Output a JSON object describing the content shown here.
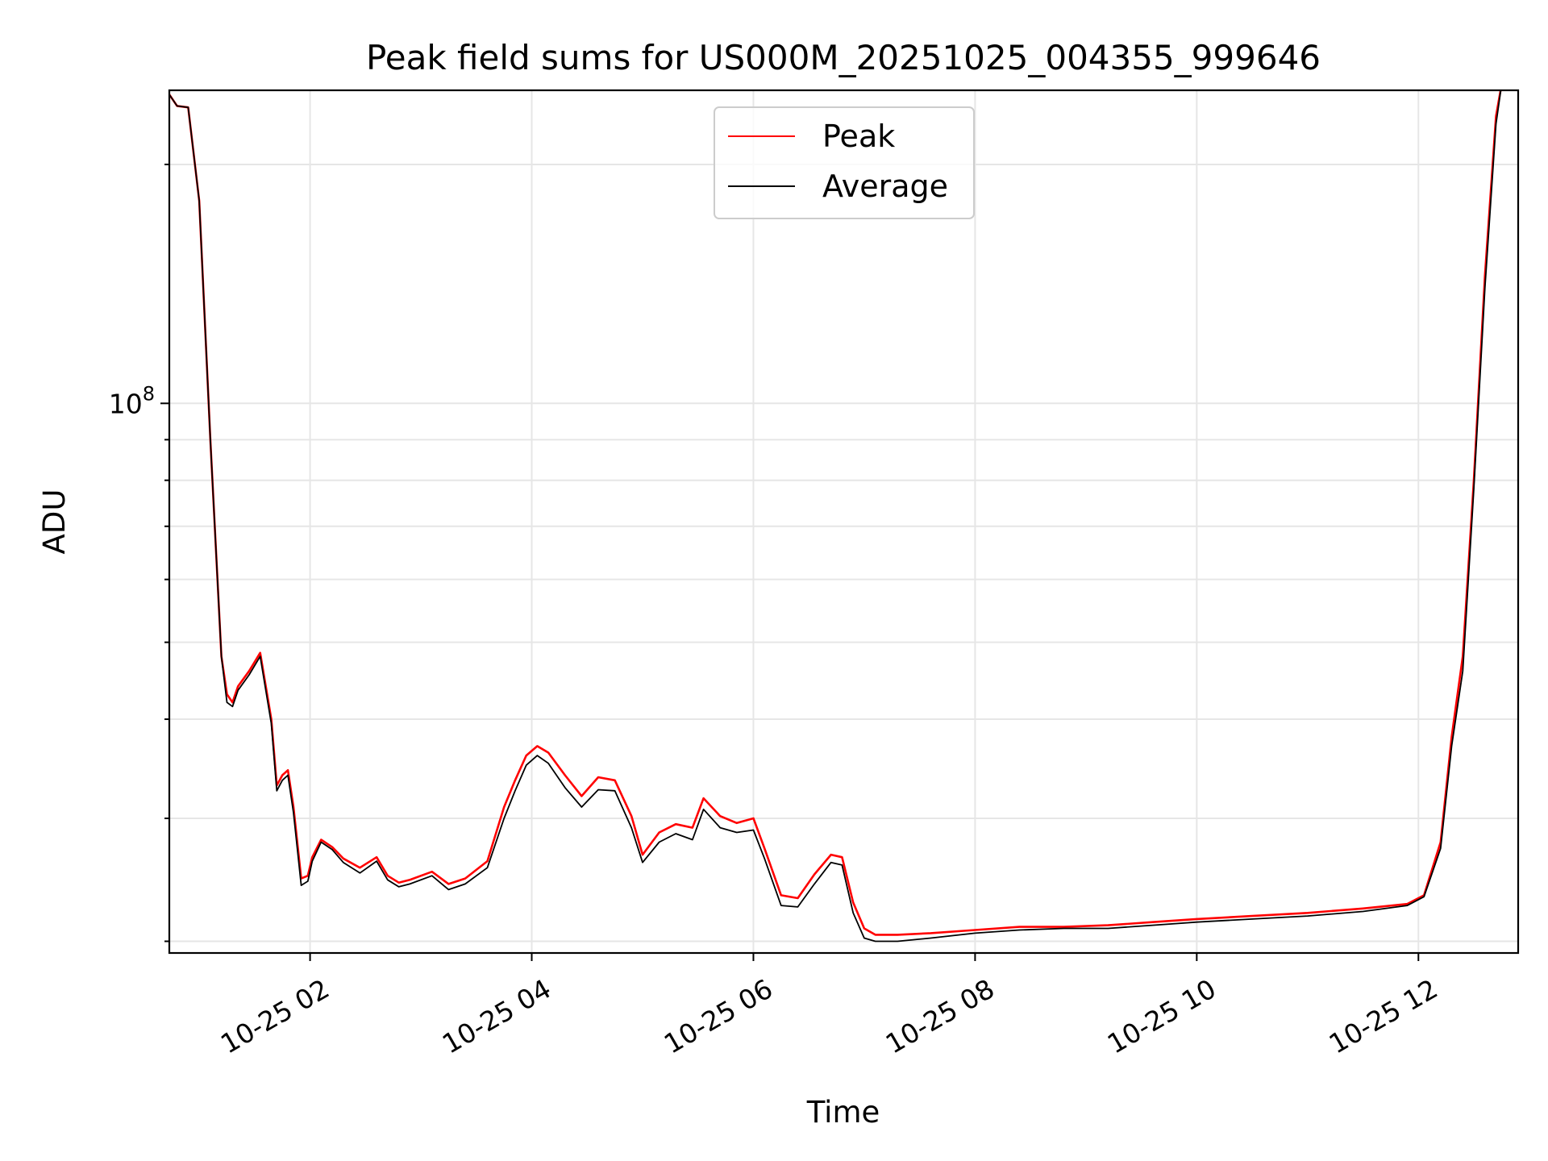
{
  "chart_data": {
    "type": "line",
    "title": "Peak field sums for US000M_20251025_004355_999646",
    "xlabel": "Time",
    "ylabel": "ADU",
    "yscale": "log",
    "grid": true,
    "legend_position": "top-center",
    "x_unit": "hours since 2025-10-25 00:00",
    "xlim": [
      0.73,
      12.9
    ],
    "ylim": [
      20300000,
      248000000
    ],
    "x_ticks": [
      {
        "value": 2,
        "label": "10-25 02"
      },
      {
        "value": 4,
        "label": "10-25 04"
      },
      {
        "value": 6,
        "label": "10-25 06"
      },
      {
        "value": 8,
        "label": "10-25 08"
      },
      {
        "value": 10,
        "label": "10-25 10"
      },
      {
        "value": 12,
        "label": "10-25 12"
      }
    ],
    "y_major_ticks": [
      {
        "value": 100000000,
        "base": "10",
        "exponent": "8"
      }
    ],
    "y_minor_ticks": [
      21000000,
      30000000,
      40000000,
      50000000,
      60000000,
      70000000,
      80000000,
      90000000,
      200000000
    ],
    "series": [
      {
        "name": "Peak",
        "color": "#ff0000",
        "x": [
          0.73,
          0.8,
          0.9,
          1.0,
          1.1,
          1.2,
          1.25,
          1.3,
          1.35,
          1.45,
          1.55,
          1.65,
          1.7,
          1.75,
          1.8,
          1.85,
          1.92,
          1.98,
          2.02,
          2.1,
          2.2,
          2.3,
          2.45,
          2.6,
          2.7,
          2.8,
          2.9,
          3.1,
          3.25,
          3.4,
          3.6,
          3.75,
          3.85,
          3.95,
          4.05,
          4.15,
          4.3,
          4.45,
          4.6,
          4.75,
          4.9,
          5.0,
          5.15,
          5.3,
          5.45,
          5.55,
          5.7,
          5.85,
          6.0,
          6.1,
          6.25,
          6.4,
          6.55,
          6.7,
          6.8,
          6.9,
          7.0,
          7.1,
          7.3,
          7.6,
          8.0,
          8.4,
          8.8,
          9.2,
          9.6,
          10.0,
          10.5,
          11.0,
          11.5,
          11.9,
          12.05,
          12.2,
          12.3,
          12.4,
          12.5,
          12.6,
          12.7,
          12.75
        ],
        "values": [
          245000000,
          237000000,
          236000000,
          180000000,
          90000000,
          48000000,
          43000000,
          42000000,
          44000000,
          46000000,
          48500000,
          40000000,
          33000000,
          34000000,
          34500000,
          31000000,
          25200000,
          25400000,
          26800000,
          28200000,
          27600000,
          26700000,
          26000000,
          26800000,
          25400000,
          24900000,
          25100000,
          25700000,
          24800000,
          25200000,
          26500000,
          31000000,
          33500000,
          36000000,
          37000000,
          36300000,
          34000000,
          32000000,
          33800000,
          33500000,
          30200000,
          27000000,
          28800000,
          29500000,
          29200000,
          31800000,
          30200000,
          29600000,
          30000000,
          27500000,
          24000000,
          23800000,
          25500000,
          27000000,
          26800000,
          23500000,
          21800000,
          21400000,
          21400000,
          21500000,
          21700000,
          21900000,
          21900000,
          22000000,
          22200000,
          22400000,
          22600000,
          22800000,
          23100000,
          23400000,
          24000000,
          28000000,
          38000000,
          48000000,
          80000000,
          145000000,
          230000000,
          252000000
        ]
      },
      {
        "name": "Average",
        "color": "#000000",
        "x": [
          0.73,
          0.8,
          0.9,
          1.0,
          1.1,
          1.2,
          1.25,
          1.3,
          1.35,
          1.45,
          1.55,
          1.65,
          1.7,
          1.75,
          1.8,
          1.85,
          1.92,
          1.98,
          2.02,
          2.1,
          2.2,
          2.3,
          2.45,
          2.6,
          2.7,
          2.8,
          2.9,
          3.1,
          3.25,
          3.4,
          3.6,
          3.75,
          3.85,
          3.95,
          4.05,
          4.15,
          4.3,
          4.45,
          4.6,
          4.75,
          4.9,
          5.0,
          5.15,
          5.3,
          5.45,
          5.55,
          5.7,
          5.85,
          6.0,
          6.1,
          6.25,
          6.4,
          6.55,
          6.7,
          6.8,
          6.9,
          7.0,
          7.1,
          7.3,
          7.6,
          8.0,
          8.4,
          8.8,
          9.2,
          9.6,
          10.0,
          10.5,
          11.0,
          11.5,
          11.9,
          12.05,
          12.2,
          12.3,
          12.4,
          12.5,
          12.6,
          12.7,
          12.75
        ],
        "values": [
          245000000,
          237000000,
          236000000,
          180000000,
          90000000,
          48000000,
          42000000,
          41500000,
          43500000,
          45500000,
          48000000,
          39500000,
          32500000,
          33500000,
          34000000,
          30500000,
          24700000,
          25000000,
          26500000,
          28000000,
          27400000,
          26400000,
          25600000,
          26500000,
          25100000,
          24600000,
          24800000,
          25400000,
          24400000,
          24800000,
          26000000,
          30000000,
          32500000,
          35000000,
          36000000,
          35200000,
          32800000,
          31000000,
          32600000,
          32500000,
          29200000,
          26400000,
          28000000,
          28700000,
          28200000,
          30800000,
          29200000,
          28800000,
          29000000,
          26700000,
          23300000,
          23200000,
          24800000,
          26400000,
          26200000,
          22800000,
          21200000,
          21000000,
          21000000,
          21200000,
          21500000,
          21700000,
          21800000,
          21800000,
          22000000,
          22200000,
          22400000,
          22600000,
          22900000,
          23300000,
          23900000,
          27500000,
          37000000,
          46000000,
          78000000,
          140000000,
          225000000,
          252000000
        ]
      }
    ]
  }
}
